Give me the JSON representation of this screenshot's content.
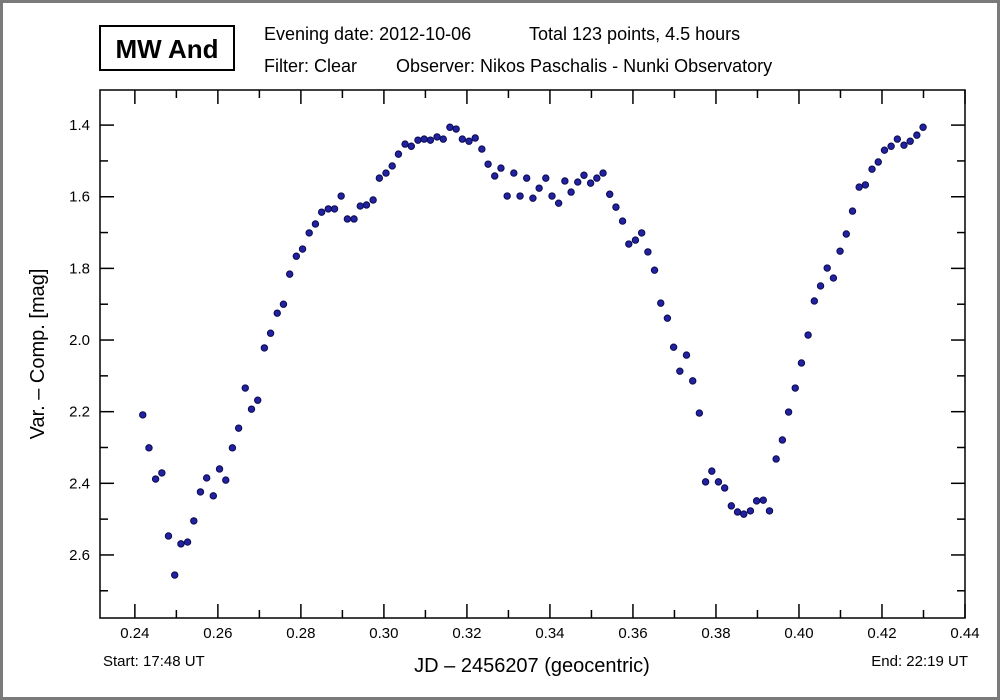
{
  "header": {
    "star_name": "MW And",
    "evening_date": "Evening date: 2012-10-06",
    "total": "Total 123 points, 4.5 hours",
    "filter": "Filter: Clear",
    "observer": "Observer: Nikos Paschalis - Nunki Observatory",
    "start": "Start: 17:48 UT",
    "end": "End: 22:19 UT"
  },
  "colors": {
    "point_fill": "#2222a0",
    "point_edge": "#0a0a50",
    "frame": "#7a7a7a"
  },
  "chart_data": {
    "type": "scatter",
    "xlabel": "JD – 2456207  (geocentric)",
    "ylabel": "Var. – Comp. [mag]",
    "xlim": [
      0.2316,
      0.44
    ],
    "ylim": [
      2.776,
      1.302
    ],
    "y_inverted": true,
    "grid": false,
    "xticks": [
      0.24,
      0.26,
      0.28,
      0.3,
      0.32,
      0.34,
      0.36,
      0.38,
      0.4,
      0.42,
      0.44
    ],
    "xtick_labels": [
      "0.24",
      "0.26",
      "0.28",
      "0.30",
      "0.32",
      "0.34",
      "0.36",
      "0.38",
      "0.40",
      "0.42",
      "0.44"
    ],
    "yticks": [
      1.4,
      1.6,
      1.8,
      2.0,
      2.2,
      2.4,
      2.6
    ],
    "ytick_labels": [
      "1.4",
      "1.6",
      "1.8",
      "2.0",
      "2.2",
      "2.4",
      "2.6"
    ],
    "x": [
      0.2419,
      0.2434,
      0.245,
      0.2465,
      0.2481,
      0.2496,
      0.2511,
      0.2527,
      0.2542,
      0.2558,
      0.2573,
      0.2589,
      0.2604,
      0.2619,
      0.2635,
      0.265,
      0.2666,
      0.2681,
      0.2696,
      0.2712,
      0.2727,
      0.2743,
      0.2758,
      0.2773,
      0.2789,
      0.2804,
      0.282,
      0.2835,
      0.285,
      0.2866,
      0.2881,
      0.2897,
      0.2912,
      0.2928,
      0.2943,
      0.2958,
      0.2974,
      0.2989,
      0.3005,
      0.302,
      0.3035,
      0.3051,
      0.3066,
      0.3082,
      0.3097,
      0.3112,
      0.3128,
      0.3143,
      0.3159,
      0.3174,
      0.3189,
      0.3205,
      0.322,
      0.3236,
      0.3251,
      0.3267,
      0.3282,
      0.3297,
      0.3313,
      0.3328,
      0.3344,
      0.3359,
      0.3374,
      0.339,
      0.3405,
      0.3421,
      0.3436,
      0.3451,
      0.3467,
      0.3482,
      0.3498,
      0.3513,
      0.3528,
      0.3544,
      0.3559,
      0.3575,
      0.359,
      0.3606,
      0.3621,
      0.3636,
      0.3652,
      0.3667,
      0.3683,
      0.3698,
      0.3713,
      0.3729,
      0.3744,
      0.376,
      0.3775,
      0.379,
      0.3806,
      0.3821,
      0.3837,
      0.3852,
      0.3867,
      0.3883,
      0.3898,
      0.3914,
      0.3929,
      0.3945,
      0.396,
      0.3975,
      0.3991,
      0.4006,
      0.4022,
      0.4037,
      0.4052,
      0.4068,
      0.4083,
      0.4099,
      0.4114,
      0.4129,
      0.4145,
      0.416,
      0.4176,
      0.4191,
      0.4206,
      0.4222,
      0.4237,
      0.4253,
      0.4268,
      0.4284,
      0.4299
    ],
    "y": [
      2.209,
      2.301,
      2.388,
      2.371,
      2.547,
      2.656,
      2.569,
      2.564,
      2.505,
      2.424,
      2.385,
      2.435,
      2.36,
      2.391,
      2.301,
      2.246,
      2.134,
      2.193,
      2.168,
      2.022,
      1.981,
      1.925,
      1.9,
      1.816,
      1.766,
      1.746,
      1.701,
      1.676,
      1.643,
      1.634,
      1.634,
      1.598,
      1.662,
      1.662,
      1.626,
      1.623,
      1.609,
      1.548,
      1.534,
      1.514,
      1.481,
      1.453,
      1.459,
      1.442,
      1.439,
      1.442,
      1.433,
      1.439,
      1.406,
      1.411,
      1.439,
      1.445,
      1.436,
      1.467,
      1.509,
      1.542,
      1.52,
      1.598,
      1.534,
      1.598,
      1.548,
      1.604,
      1.576,
      1.548,
      1.598,
      1.618,
      1.556,
      1.587,
      1.559,
      1.54,
      1.562,
      1.548,
      1.534,
      1.593,
      1.629,
      1.668,
      1.732,
      1.721,
      1.701,
      1.754,
      1.805,
      1.897,
      1.939,
      2.02,
      2.087,
      2.042,
      2.114,
      2.204,
      2.396,
      2.366,
      2.396,
      2.413,
      2.463,
      2.48,
      2.486,
      2.477,
      2.449,
      2.447,
      2.477,
      2.332,
      2.279,
      2.201,
      2.134,
      2.064,
      1.986,
      1.891,
      1.849,
      1.799,
      1.827,
      1.752,
      1.704,
      1.64,
      1.573,
      1.567,
      1.523,
      1.503,
      1.47,
      1.459,
      1.439,
      1.456,
      1.445,
      1.428,
      1.406
    ]
  }
}
